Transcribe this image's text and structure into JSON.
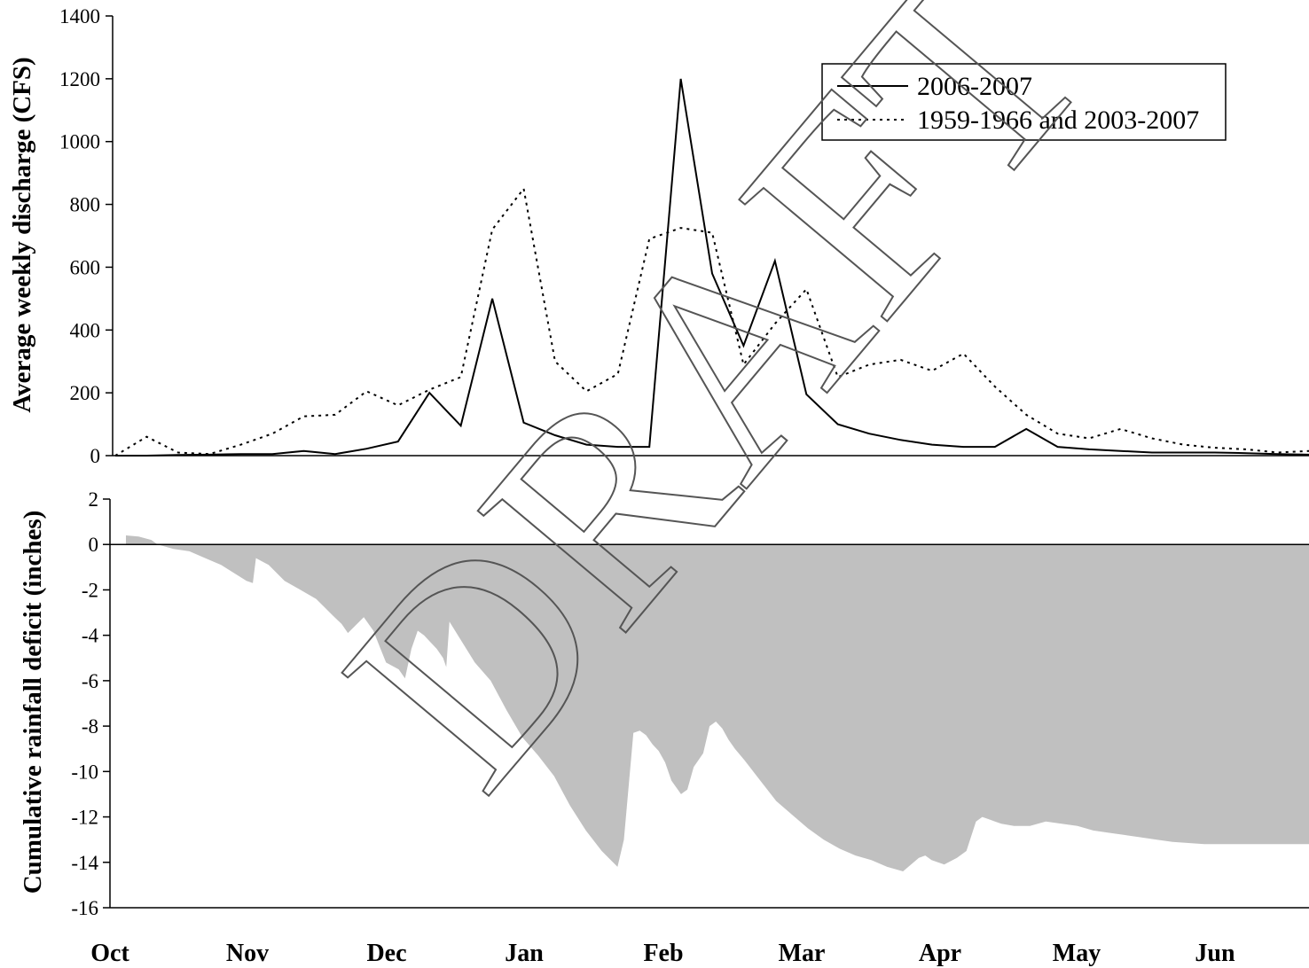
{
  "chart_data": [
    {
      "type": "line",
      "ylabel": "Average weekly discharge (CFS)",
      "ylim": [
        0,
        1400
      ],
      "yticks": [
        0,
        200,
        400,
        600,
        800,
        1000,
        1200,
        1400
      ],
      "x_unit": "week index from Oct 1 (1 week per step)",
      "legend_position": "top-right",
      "series": [
        {
          "name": "2006-2007",
          "style": "solid",
          "color": "#000000",
          "x": [
            0,
            1,
            2,
            3,
            4,
            5,
            6,
            7,
            8,
            9,
            10,
            11,
            12,
            13,
            14,
            15,
            16,
            17,
            18,
            19,
            20,
            21,
            22,
            23,
            24,
            25,
            26,
            27,
            28,
            29,
            30,
            31,
            32,
            33,
            34,
            35,
            36,
            37,
            38
          ],
          "values": [
            0,
            0,
            2,
            3,
            5,
            5,
            15,
            5,
            22,
            45,
            200,
            95,
            500,
            105,
            65,
            35,
            28,
            28,
            1200,
            580,
            350,
            620,
            195,
            100,
            70,
            50,
            35,
            28,
            28,
            85,
            28,
            20,
            15,
            10,
            10,
            10,
            8,
            5,
            3
          ]
        },
        {
          "name": "1959-1966 and 2003-2007",
          "style": "dotted",
          "color": "#000000",
          "x": [
            0,
            1,
            2,
            3,
            4,
            5,
            6,
            7,
            8,
            9,
            10,
            11,
            12,
            13,
            14,
            15,
            16,
            17,
            18,
            19,
            20,
            21,
            22,
            23,
            24,
            25,
            26,
            27,
            28,
            29,
            30,
            31,
            32,
            33,
            34,
            35,
            36,
            37,
            38
          ],
          "values": [
            0,
            60,
            10,
            5,
            35,
            70,
            125,
            130,
            205,
            160,
            210,
            250,
            720,
            850,
            300,
            205,
            260,
            690,
            725,
            710,
            290,
            420,
            530,
            250,
            290,
            305,
            270,
            325,
            220,
            130,
            70,
            55,
            85,
            55,
            35,
            25,
            20,
            10,
            15
          ]
        }
      ]
    },
    {
      "type": "area",
      "ylabel": "Cumulative rainfall deficit (inches)",
      "ylim": [
        -16,
        2
      ],
      "yticks": [
        2,
        0,
        -2,
        -4,
        -6,
        -8,
        -10,
        -12,
        -14,
        -16
      ],
      "fill_color": "#c0c0c0",
      "x_unit": "day index from Oct 1",
      "x": [
        0,
        4,
        8,
        10,
        15,
        20,
        25,
        30,
        38,
        40,
        41,
        45,
        50,
        55,
        60,
        65,
        68,
        70,
        75,
        78,
        80,
        82,
        86,
        88,
        90,
        92,
        94,
        96,
        98,
        100,
        101,
        102,
        106,
        110,
        115,
        120,
        125,
        130,
        135,
        140,
        145,
        150,
        155,
        157,
        160,
        162,
        164,
        166,
        168,
        170,
        172,
        175,
        177,
        179,
        182,
        184,
        186,
        188,
        190,
        192,
        195,
        200,
        205,
        210,
        215,
        220,
        225,
        230,
        235,
        240,
        245,
        250,
        252,
        254,
        258,
        262,
        265,
        268,
        270,
        272,
        274,
        276,
        280,
        285,
        290,
        295,
        300,
        305,
        310,
        315,
        320,
        325,
        330,
        335,
        340,
        345,
        350,
        355,
        360,
        365,
        370,
        373
      ],
      "values": [
        0.4,
        0.35,
        0.2,
        0,
        -0.2,
        -0.3,
        -0.6,
        -0.9,
        -1.6,
        -1.7,
        -0.6,
        -0.9,
        -1.6,
        -2.0,
        -2.4,
        -3.1,
        -3.5,
        -3.9,
        -3.2,
        -3.8,
        -4.5,
        -5.2,
        -5.5,
        -5.9,
        -4.6,
        -3.8,
        -4.0,
        -4.3,
        -4.6,
        -5.0,
        -5.4,
        -3.4,
        -4.3,
        -5.2,
        -6.0,
        -7.3,
        -8.5,
        -9.3,
        -10.2,
        -11.5,
        -12.6,
        -13.5,
        -14.2,
        -13.0,
        -8.3,
        -8.2,
        -8.4,
        -8.8,
        -9.1,
        -9.6,
        -10.4,
        -11.0,
        -10.8,
        -9.8,
        -9.2,
        -8.0,
        -7.8,
        -8.1,
        -8.6,
        -9.0,
        -9.5,
        -10.4,
        -11.3,
        -11.9,
        -12.5,
        -13.0,
        -13.4,
        -13.7,
        -13.9,
        -14.2,
        -14.4,
        -13.8,
        -13.7,
        -13.9,
        -14.1,
        -13.8,
        -13.5,
        -12.2,
        -12.0,
        -12.1,
        -12.2,
        -12.3,
        -12.4,
        -12.4,
        -12.2,
        -12.3,
        -12.4,
        -12.6,
        -12.7,
        -12.8,
        -12.9,
        -13.0,
        -13.1,
        -13.15,
        -13.2,
        -13.2,
        -13.2,
        -13.2,
        -13.2,
        -13.2,
        -13.2,
        -13.2
      ]
    }
  ],
  "x_axis": {
    "month_labels": [
      "Oct",
      "Nov",
      "Dec",
      "Jan",
      "Feb",
      "Mar",
      "Apr",
      "May",
      "Jun"
    ]
  },
  "watermark": "DRAFT",
  "legend": {
    "entries": [
      "2006-2007",
      "1959-1966 and 2003-2007"
    ]
  }
}
